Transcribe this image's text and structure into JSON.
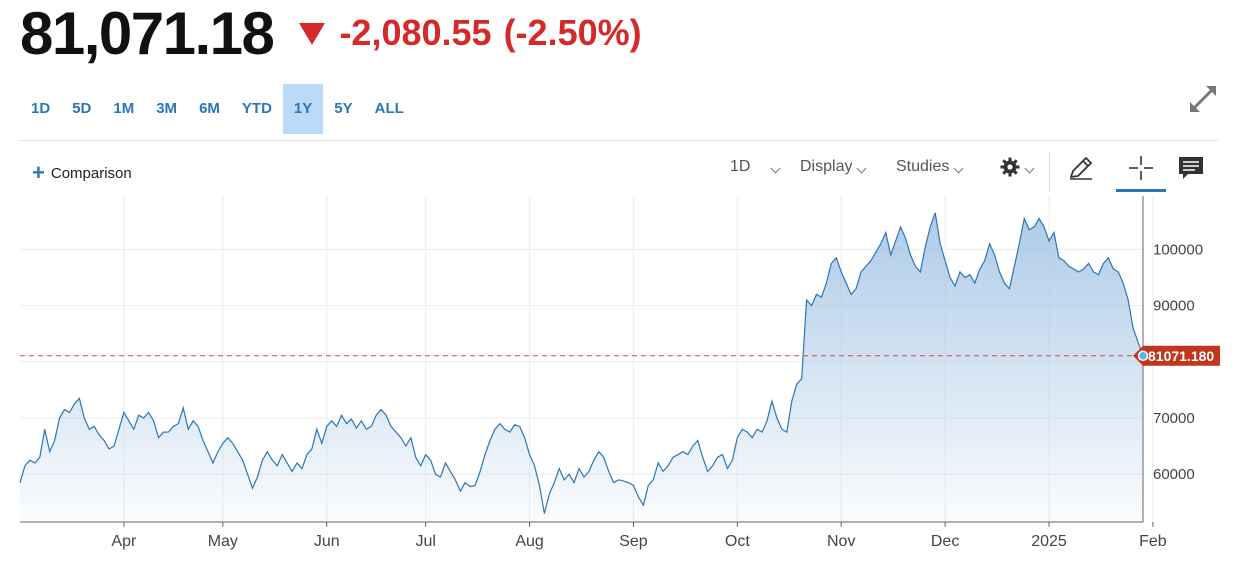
{
  "quote": {
    "price": "81,071.18",
    "change": "-2,080.55",
    "change_pct": "(-2.50%)",
    "direction_icon": "triangle-down-icon",
    "down_color": "#d42a2a"
  },
  "ranges": [
    "1D",
    "5D",
    "1M",
    "3M",
    "6M",
    "YTD",
    "1Y",
    "5Y",
    "ALL"
  ],
  "active_range": "1Y",
  "toolbar": {
    "comparison_label": "Comparison",
    "interval_label": "1D",
    "display_label": "Display",
    "studies_label": "Studies",
    "icons": [
      "settings-gear-icon",
      "draw-pencil-icon",
      "crosshair-icon",
      "news-icon"
    ]
  },
  "colors": {
    "line": "#2a76b8",
    "fill": "#a9c8e6",
    "accent": "#2a76b8",
    "last_price_tag": "#c0371c"
  },
  "chart_data": {
    "type": "area",
    "series": [
      {
        "values": [
          58500,
          61500,
          62500,
          62000,
          63000,
          68000,
          64000,
          66000,
          70000,
          71500,
          71000,
          72500,
          73500,
          70000,
          68000,
          68500,
          67000,
          66000,
          64500,
          65000,
          68000,
          71000,
          69500,
          68000,
          70500,
          70000,
          71000,
          69500,
          66500,
          67500,
          67500,
          68500,
          69000,
          71800,
          68000,
          69500,
          68500,
          66000,
          64000,
          62000,
          64000,
          65500,
          66500,
          65500,
          64000,
          62500,
          60000,
          57500,
          59500,
          62500,
          64000,
          62500,
          61500,
          63500,
          62000,
          60500,
          62000,
          61000,
          63500,
          64500,
          68000,
          65500,
          68500,
          69500,
          68500,
          70500,
          69000,
          69800,
          68200,
          69500,
          68000,
          68500,
          70500,
          71500,
          70500,
          68500,
          67500,
          66500,
          65000,
          66500,
          63000,
          61500,
          63500,
          62500,
          60000,
          59500,
          62000,
          60500,
          59000,
          57000,
          58500,
          57800,
          58000,
          60500,
          63500,
          66000,
          68000,
          69000,
          68000,
          67500,
          68800,
          68500,
          66500,
          63500,
          61500,
          58000,
          53000,
          56500,
          58500,
          61000,
          59000,
          60000,
          58500,
          61000,
          59500,
          60500,
          62500,
          64000,
          63000,
          60500,
          58500,
          59000,
          58800,
          58500,
          58000,
          56000,
          54500,
          58000,
          59000,
          62000,
          60500,
          61500,
          63000,
          63500,
          64000,
          63500,
          65000,
          66000,
          63000,
          60500,
          61500,
          63000,
          63500,
          61000,
          62500,
          66500,
          68000,
          67500,
          66500,
          68000,
          67500,
          69500,
          73000,
          70000,
          68000,
          67500,
          73000,
          76000,
          77000,
          91000,
          90000,
          92000,
          91500,
          94000,
          97500,
          98500,
          96000,
          94000,
          92000,
          93000,
          96000,
          97000,
          98000,
          99500,
          101000,
          103000,
          99000,
          101500,
          104000,
          102000,
          99000,
          97000,
          96000,
          100500,
          104000,
          106500,
          101000,
          98000,
          95000,
          93500,
          96000,
          95000,
          95500,
          94000,
          96500,
          98000,
          101000,
          99000,
          96000,
          94000,
          93000,
          97000,
          101000,
          105500,
          103500,
          104000,
          105500,
          104000,
          101500,
          103000,
          98500,
          98000,
          97000,
          96500,
          96000,
          96500,
          97500,
          96000,
          95500,
          97500,
          98500,
          96500,
          96000,
          94000,
          91000,
          86000,
          83500,
          81071
        ]
      }
    ],
    "x_tick_labels": [
      "Apr",
      "May",
      "Jun",
      "Jul",
      "Aug",
      "Sep",
      "Oct",
      "Nov",
      "Dec",
      "2025",
      "Feb"
    ],
    "x_tick_index": [
      21,
      41,
      62,
      82,
      103,
      124,
      145,
      166,
      187,
      208,
      229
    ],
    "y_ticks": [
      60000,
      70000,
      80000,
      90000,
      100000
    ],
    "y_tick_labels": [
      "60000",
      "70000",
      "",
      "90000",
      "100000"
    ],
    "ylim": [
      51500,
      109500
    ],
    "last_price": 81071.18,
    "last_price_label": "81071.180",
    "grid": true,
    "legend": "none"
  }
}
